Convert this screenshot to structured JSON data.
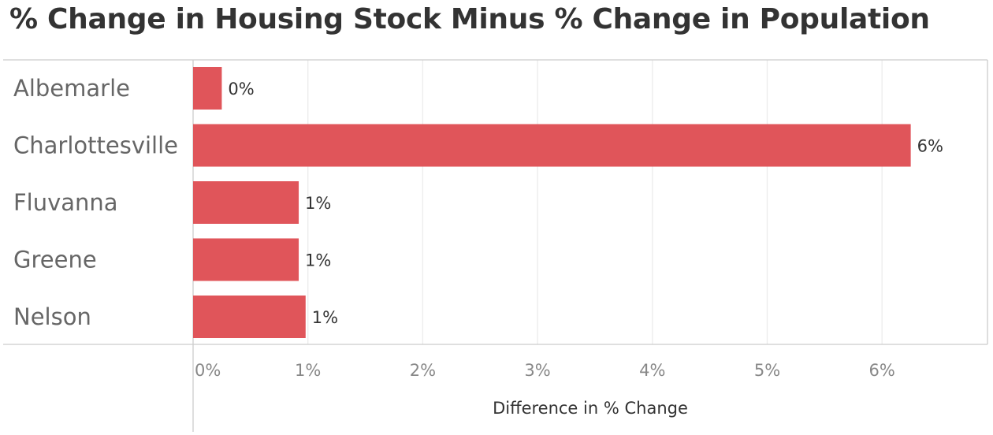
{
  "colors": {
    "bar": "#e0555a",
    "grid": "#ececec",
    "border": "#cccccc"
  },
  "chart_data": {
    "type": "bar",
    "orientation": "horizontal",
    "title": "% Change in Housing Stock Minus % Change in Population",
    "xlabel": "Difference in % Change",
    "ylabel": "",
    "categories": [
      "Albemarle",
      "Charlottesville",
      "Fluvanna",
      "Greene",
      "Nelson"
    ],
    "values": [
      0.25,
      6.25,
      0.92,
      0.92,
      0.98
    ],
    "value_labels": [
      "0%",
      "6%",
      "1%",
      "1%",
      "1%"
    ],
    "xlim": [
      0,
      6.7
    ],
    "ticks": [
      0,
      1,
      2,
      3,
      4,
      5,
      6
    ],
    "tick_labels": [
      "0%",
      "1%",
      "2%",
      "3%",
      "4%",
      "5%",
      "6%"
    ],
    "grid": true,
    "legend": "none"
  }
}
